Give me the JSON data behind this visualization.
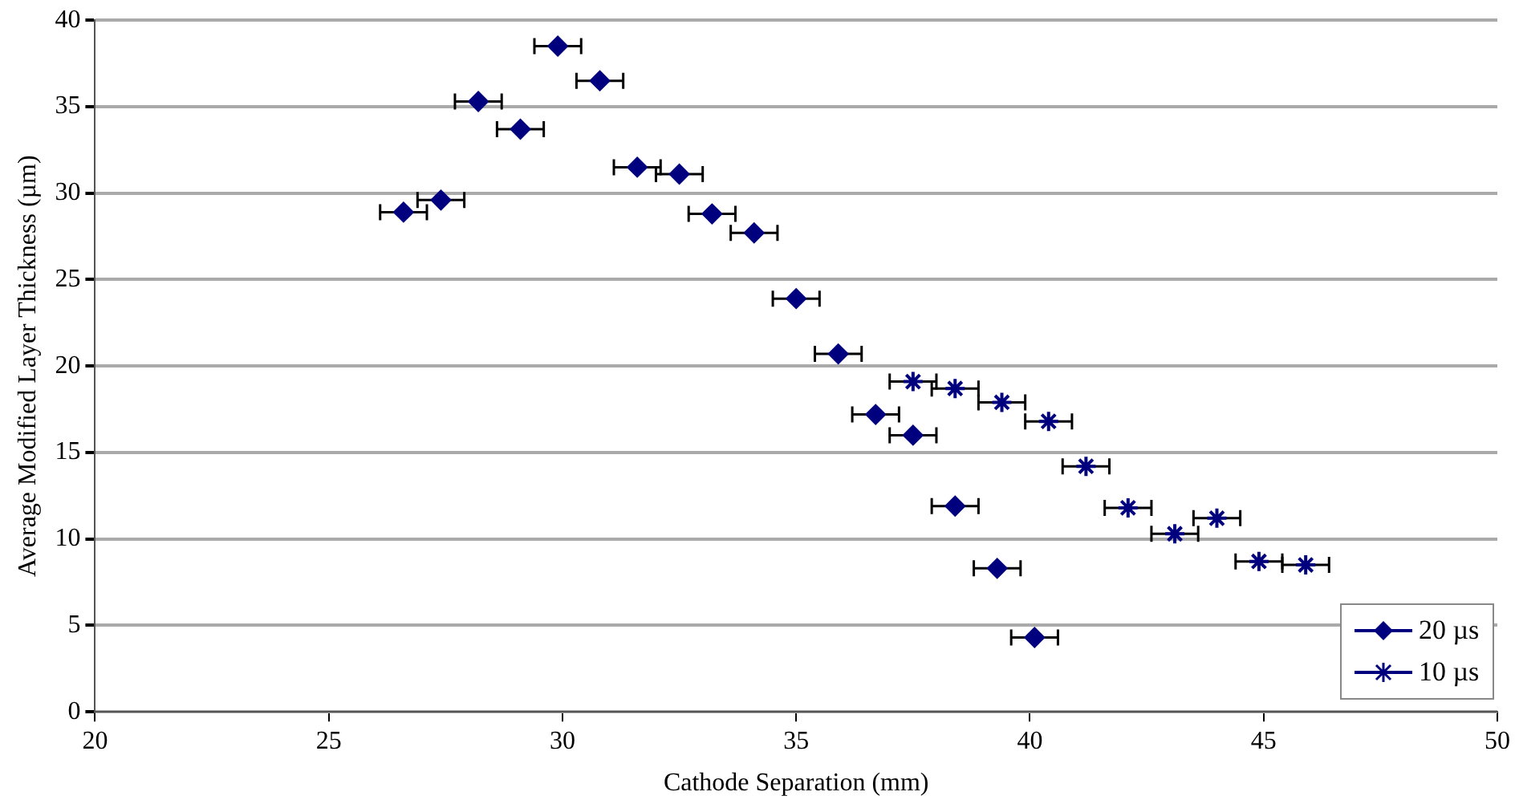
{
  "chart_data": {
    "type": "scatter",
    "xlabel": "Cathode Separation (mm)",
    "ylabel": "Average Modified Layer Thickness (µm)",
    "xlim": [
      20,
      50
    ],
    "xticks": [
      20,
      25,
      30,
      35,
      40,
      45,
      50
    ],
    "ylim": [
      0,
      40
    ],
    "yticks": [
      0,
      5,
      10,
      15,
      20,
      25,
      30,
      35,
      40
    ],
    "grid": "y",
    "legend": "bottom right",
    "series": [
      {
        "name": "20 µs",
        "color": "#00007f",
        "marker": "diamond",
        "x": [
          26.6,
          27.4,
          28.2,
          29.1,
          29.9,
          30.8,
          31.6,
          32.5,
          33.2,
          34.1,
          35.0,
          35.9,
          36.7,
          37.5,
          38.4,
          39.3,
          40.1
        ],
        "values": [
          28.9,
          29.6,
          35.3,
          33.7,
          38.5,
          36.5,
          31.5,
          31.1,
          28.8,
          27.7,
          23.9,
          20.7,
          17.2,
          16.0,
          11.9,
          8.3,
          4.3
        ],
        "xerrors": [
          0.5,
          0.5,
          0.5,
          0.5,
          0.5,
          0.5,
          0.5,
          0.5,
          0.5,
          0.5,
          0.5,
          0.5,
          0.5,
          0.5,
          0.5,
          0.5,
          0.5
        ]
      },
      {
        "name": "10 µs",
        "color": "#00007f",
        "marker": "cross",
        "x": [
          37.5,
          38.4,
          39.4,
          40.4,
          41.2,
          42.1,
          43.1,
          44.0,
          44.9,
          45.9
        ],
        "values": [
          19.1,
          18.7,
          17.9,
          16.8,
          14.2,
          11.8,
          10.3,
          11.2,
          8.7,
          8.5
        ],
        "xerrors": [
          0.5,
          0.5,
          0.5,
          0.5,
          0.5,
          0.5,
          0.5,
          0.5,
          0.5,
          0.5
        ]
      }
    ]
  }
}
